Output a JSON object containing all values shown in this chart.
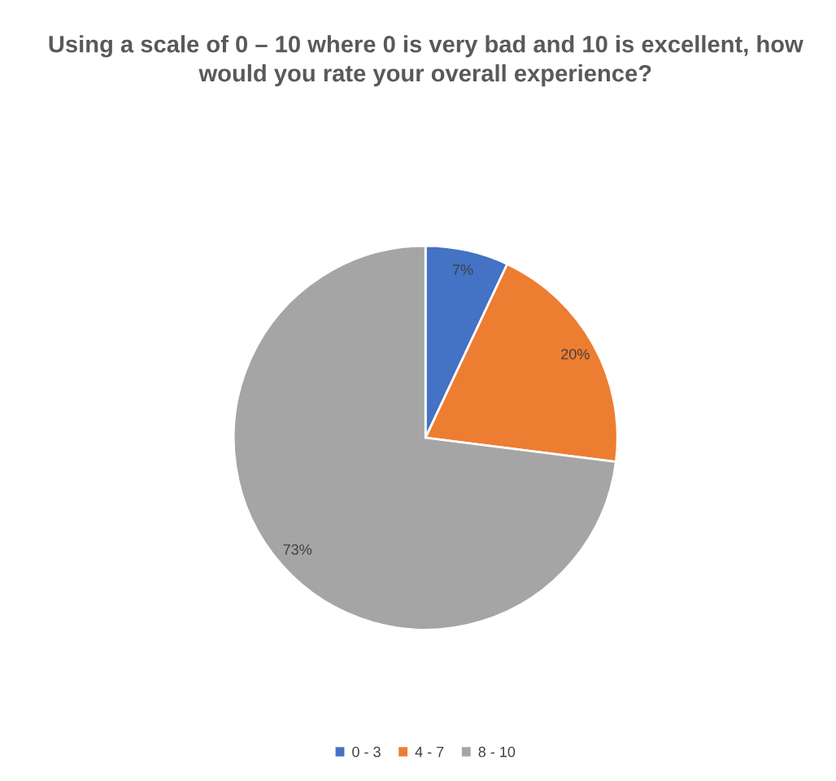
{
  "chart_data": {
    "type": "pie",
    "title": "Using a scale of 0 – 10 where 0 is very bad and 10 is excellent, how would you rate your overall experience?",
    "categories": [
      "0 - 3",
      "4 - 7",
      "8 - 10"
    ],
    "values": [
      7,
      20,
      73
    ],
    "colors": [
      "#4472c4",
      "#ed7d31",
      "#a5a5a5"
    ],
    "value_labels": [
      "7%",
      "20%",
      "73%"
    ],
    "legend": "bottom"
  }
}
